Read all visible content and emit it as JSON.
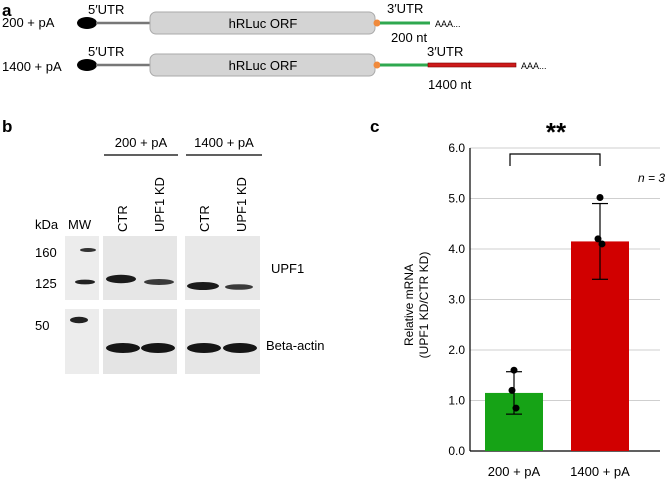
{
  "panel_a": {
    "letter": "a",
    "constructs": [
      {
        "label": "200 + pA",
        "utr5": "5′UTR",
        "orf": "hRLuc ORF",
        "utr3": "3′UTR",
        "length": "200 nt",
        "polyA": "AAA..."
      },
      {
        "label": "1400 + pA",
        "utr5": "5′UTR",
        "orf": "hRLuc ORF",
        "utr3": "3′UTR",
        "length": "1400 nt",
        "polyA": "AAA..."
      }
    ],
    "colors": {
      "short_utr": "#2fa84f",
      "long_utr": "#cc1a1a",
      "cap": "#000000",
      "orf_fill": "#d4d4d4",
      "stop": "#f08a3c"
    }
  },
  "panel_b": {
    "letter": "b",
    "groups": [
      "200 + pA",
      "1400 + pA"
    ],
    "lanes": [
      "CTR",
      "UPF1 KD",
      "CTR",
      "UPF1 KD"
    ],
    "kda_label": "kDa",
    "mw_label": "MW",
    "markers": [
      "160",
      "125",
      "50"
    ],
    "blots": [
      "UPF1",
      "Beta-actin"
    ]
  },
  "panel_c": {
    "letter": "c",
    "significance": "**",
    "n_label": "n = 3"
  },
  "chart_data": {
    "type": "bar",
    "categories": [
      "200 + pA",
      "1400 + pA"
    ],
    "values": [
      1.15,
      4.15
    ],
    "error": [
      0.42,
      0.75
    ],
    "points": [
      [
        1.6,
        1.2,
        0.85
      ],
      [
        5.02,
        4.2,
        4.1
      ]
    ],
    "colors": [
      "#16a316",
      "#d10000"
    ],
    "ylabel_line1": "Relative mRNA",
    "ylabel_line2": "(UPF1 KD/CTR KD)",
    "ylim": [
      0,
      6
    ],
    "yticks": [
      "0.0",
      "1.0",
      "2.0",
      "3.0",
      "4.0",
      "5.0",
      "6.0"
    ],
    "grid": true
  }
}
